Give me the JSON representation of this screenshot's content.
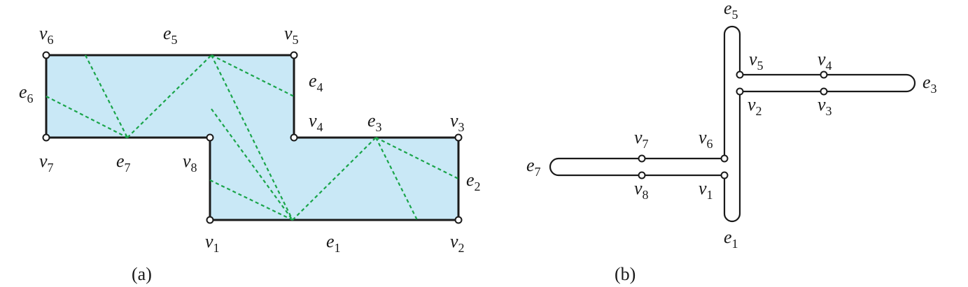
{
  "figure_a": {
    "caption": "(a)",
    "vertex_labels": [
      {
        "id": "v6",
        "base": "v",
        "sub": "6"
      },
      {
        "id": "v5",
        "base": "v",
        "sub": "5"
      },
      {
        "id": "v4",
        "base": "v",
        "sub": "4"
      },
      {
        "id": "v3",
        "base": "v",
        "sub": "3"
      },
      {
        "id": "v7",
        "base": "v",
        "sub": "7"
      },
      {
        "id": "v8",
        "base": "v",
        "sub": "8"
      },
      {
        "id": "v1",
        "base": "v",
        "sub": "1"
      },
      {
        "id": "v2",
        "base": "v",
        "sub": "2"
      }
    ],
    "edge_labels": [
      {
        "id": "e5",
        "base": "e",
        "sub": "5"
      },
      {
        "id": "e4",
        "base": "e",
        "sub": "4"
      },
      {
        "id": "e6",
        "base": "e",
        "sub": "6"
      },
      {
        "id": "e3",
        "base": "e",
        "sub": "3"
      },
      {
        "id": "e7",
        "base": "e",
        "sub": "7"
      },
      {
        "id": "e2",
        "base": "e",
        "sub": "2"
      },
      {
        "id": "e1",
        "base": "e",
        "sub": "1"
      }
    ]
  },
  "figure_b": {
    "caption": "(b)",
    "vertex_labels": [
      {
        "id": "v5",
        "base": "v",
        "sub": "5"
      },
      {
        "id": "v4",
        "base": "v",
        "sub": "4"
      },
      {
        "id": "v2",
        "base": "v",
        "sub": "2"
      },
      {
        "id": "v3",
        "base": "v",
        "sub": "3"
      },
      {
        "id": "v7",
        "base": "v",
        "sub": "7"
      },
      {
        "id": "v6",
        "base": "v",
        "sub": "6"
      },
      {
        "id": "v8",
        "base": "v",
        "sub": "8"
      },
      {
        "id": "v1",
        "base": "v",
        "sub": "1"
      }
    ],
    "edge_labels": [
      {
        "id": "e5",
        "base": "e",
        "sub": "5"
      },
      {
        "id": "e3",
        "base": "e",
        "sub": "3"
      },
      {
        "id": "e7",
        "base": "e",
        "sub": "7"
      },
      {
        "id": "e1",
        "base": "e",
        "sub": "1"
      }
    ]
  },
  "colors": {
    "polygon_fill": "#c9e8f6",
    "diagonal": "#1aa54a",
    "stroke": "#1a1a1a"
  }
}
